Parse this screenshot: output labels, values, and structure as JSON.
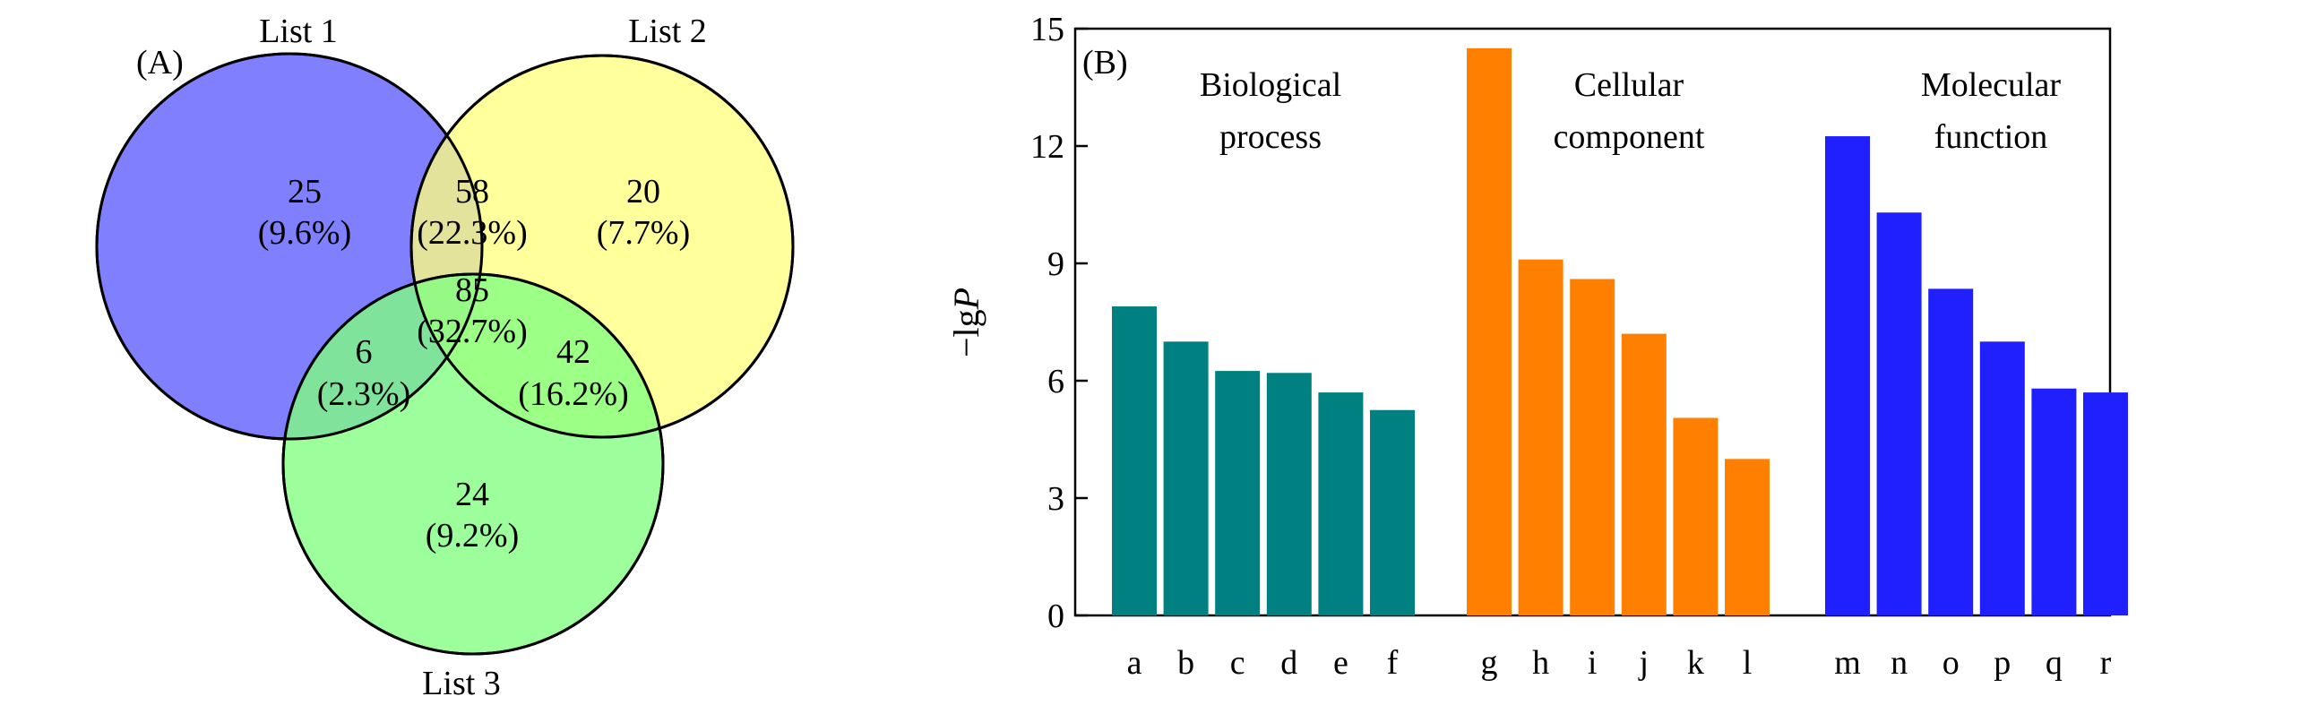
{
  "chart_data": [
    {
      "type": "venn",
      "panel_label": "(A)",
      "sets": [
        {
          "name": "List 1",
          "color": "#8080ff"
        },
        {
          "name": "List 2",
          "color": "#ffff80"
        },
        {
          "name": "List 3",
          "color": "#80ff80"
        }
      ],
      "regions": [
        {
          "sets": [
            "List 1"
          ],
          "count": "25",
          "percent": "(9.6%)"
        },
        {
          "sets": [
            "List 1",
            "List 2"
          ],
          "count": "58",
          "percent": "(22.3%)"
        },
        {
          "sets": [
            "List 2"
          ],
          "count": "20",
          "percent": "(7.7%)"
        },
        {
          "sets": [
            "List 1",
            "List 2",
            "List 3"
          ],
          "count": "85",
          "percent": "(32.7%)"
        },
        {
          "sets": [
            "List 1",
            "List 3"
          ],
          "count": "6",
          "percent": "(2.3%)"
        },
        {
          "sets": [
            "List 2",
            "List 3"
          ],
          "count": "42",
          "percent": "(16.2%)"
        },
        {
          "sets": [
            "List 3"
          ],
          "count": "24",
          "percent": "(9.2%)"
        }
      ]
    },
    {
      "type": "bar",
      "panel_label": "(B)",
      "ylabel_main": "−lg",
      "ylabel_italic": "P",
      "ylim": [
        0,
        15
      ],
      "yticks": [
        "0",
        "3",
        "6",
        "9",
        "12",
        "15"
      ],
      "groups": [
        {
          "label_lines": [
            "Biological",
            "process"
          ],
          "color": "#008080",
          "categories": [
            "a",
            "b",
            "c",
            "d",
            "e",
            "f"
          ],
          "values": [
            7.9,
            7.0,
            6.25,
            6.2,
            5.7,
            5.25
          ]
        },
        {
          "label_lines": [
            "Cellular",
            "component"
          ],
          "color": "#ff8000",
          "categories": [
            "g",
            "h",
            "i",
            "j",
            "k",
            "l"
          ],
          "values": [
            14.5,
            9.1,
            8.6,
            7.2,
            5.05,
            4.0
          ]
        },
        {
          "label_lines": [
            "Molecular",
            "function"
          ],
          "color": "#2020ff",
          "categories": [
            "m",
            "n",
            "o",
            "p",
            "q",
            "r"
          ],
          "values": [
            12.25,
            10.3,
            8.35,
            7.0,
            5.8,
            5.7
          ]
        }
      ]
    }
  ]
}
